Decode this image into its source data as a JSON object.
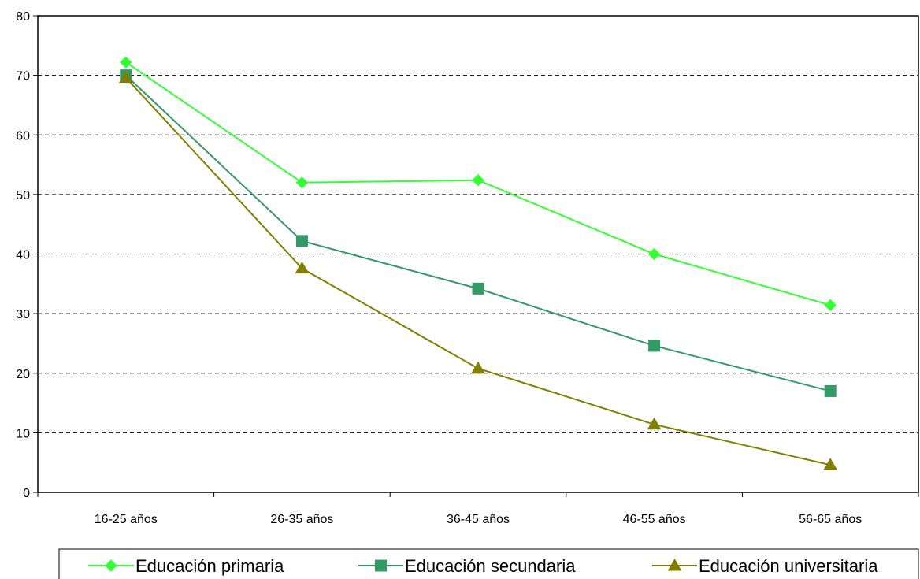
{
  "chart_data": {
    "type": "line",
    "categories": [
      "16-25 años",
      "26-35 años",
      "36-45 años",
      "46-55 años",
      "56-65 años"
    ],
    "ylim": [
      0,
      80
    ],
    "yticks": [
      0,
      10,
      20,
      30,
      40,
      50,
      60,
      70,
      80
    ],
    "grid": "horizontal dashed",
    "legend_position": "bottom",
    "series": [
      {
        "name": "Educación primaria",
        "values": [
          72.2,
          52.0,
          52.4,
          40.0,
          31.4
        ],
        "color": "#33FF33",
        "marker": "diamond"
      },
      {
        "name": "Educación secundaria",
        "values": [
          70.0,
          42.2,
          34.2,
          24.6,
          17.0
        ],
        "color": "#339966",
        "marker": "square"
      },
      {
        "name": "Educación universitaria",
        "values": [
          69.6,
          37.6,
          20.8,
          11.4,
          4.6
        ],
        "color": "#808000",
        "marker": "triangle"
      }
    ]
  }
}
